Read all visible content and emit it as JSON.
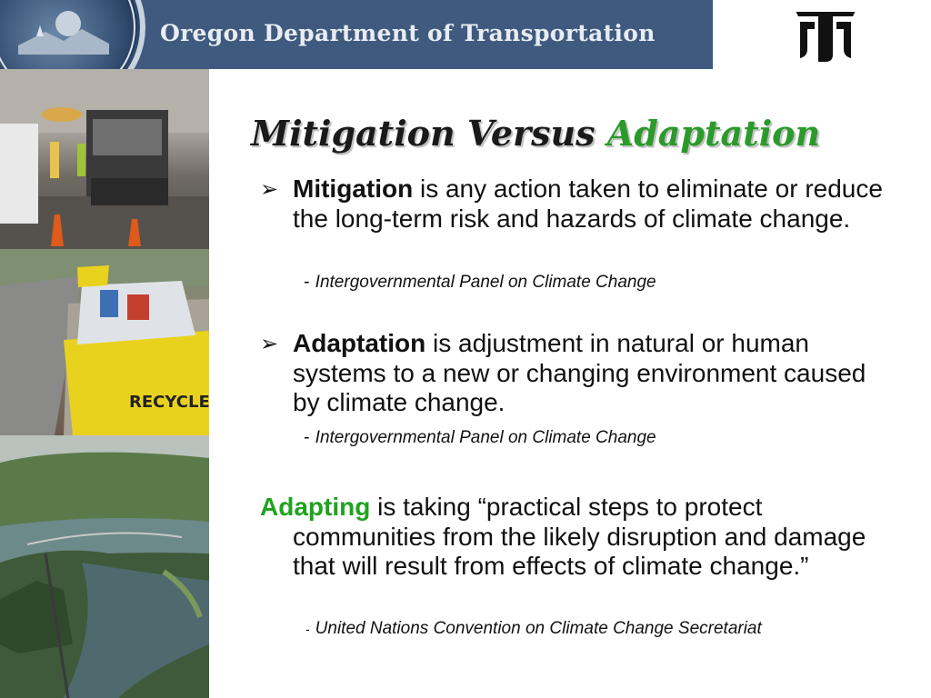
{
  "header": {
    "agency_name": "Oregon Department of Transportation",
    "logo_icon": "odot-logo-icon",
    "colors": {
      "banner": "#3f5a7e",
      "banner_text": "#e8edf3"
    }
  },
  "title": {
    "part1": "Mitigation Versus",
    "part2": "Adaptation",
    "accent_color": "#2a9a2a"
  },
  "images": [
    {
      "icon": "road-paving-photo"
    },
    {
      "icon": "recycle-bin-photo"
    },
    {
      "icon": "river-aerial-photo"
    }
  ],
  "sections": {
    "mitigation": {
      "term": "Mitigation",
      "definition": " is any action taken to eliminate or reduce the long-term risk and hazards of climate change.",
      "source_dash": "-",
      "source": "Intergovernmental Panel on Climate Change"
    },
    "adaptation": {
      "term": "Adaptation",
      "definition": " is adjustment in natural or human systems to a new or changing environment caused by climate change.",
      "source_dash": "-",
      "source": "Intergovernmental Panel on Climate Change"
    },
    "adapting": {
      "term": "Adapting",
      "definition_line1": " is taking “practical steps to protect",
      "definition_rest": "communities from the likely disruption and damage that will result from effects of climate change.”",
      "source_dash": "-",
      "source": "United Nations Convention on Climate Change Secretariat",
      "term_color": "#1fa31f"
    }
  }
}
